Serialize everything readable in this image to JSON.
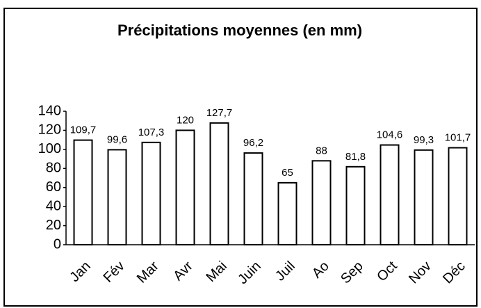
{
  "chart_data": {
    "type": "bar",
    "title": "Précipitations moyennes (en mm)",
    "categories": [
      "Jan",
      "Fév",
      "Mar",
      "Avr",
      "Mai",
      "Juin",
      "Juil",
      "Ao",
      "Sep",
      "Oct",
      "Nov",
      "Déc"
    ],
    "values": [
      109.7,
      99.6,
      107.3,
      120,
      127.7,
      96.2,
      65,
      88,
      81.8,
      104.6,
      99.3,
      101.7
    ],
    "value_labels": [
      "109,7",
      "99,6",
      "107,3",
      "120",
      "127,7",
      "96,2",
      "65",
      "88",
      "81,8",
      "104,6",
      "99,3",
      "101,7"
    ],
    "color": "#ffffff",
    "ylim": [
      0,
      140
    ],
    "yticks": [
      0,
      20,
      40,
      60,
      80,
      100,
      120,
      140
    ],
    "grid": false
  }
}
